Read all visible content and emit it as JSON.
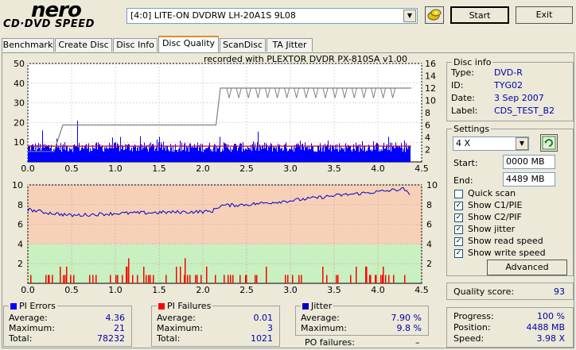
{
  "app": {
    "logo_top": "nero",
    "logo_bottom": "CD·DVD SPEED",
    "drive": "[4:0]  LITE-ON DVDRW LH-20A1S 9L08",
    "start_label": "Start",
    "exit_label": "Exit"
  },
  "tabs": [
    "Benchmark",
    "Create Disc",
    "Disc Info",
    "Disc Quality",
    "ScanDisc",
    "TA Jitter"
  ],
  "recorded_with": "recorded with PLEXTOR DVDR   PX-810SA  v1.00",
  "disc_info": {
    "title": "Disc info",
    "rows": [
      {
        "label": "Type:",
        "value": "DVD-R"
      },
      {
        "label": "ID:",
        "value": "TYG02"
      },
      {
        "label": "Date:",
        "value": "3 Sep 2007"
      },
      {
        "label": "Label:",
        "value": "CDS_TEST_B2"
      }
    ]
  },
  "settings": {
    "title": "Settings",
    "speed": "4 X",
    "start_label": "Start:",
    "start_value": "0000 MB",
    "end_label": "End:",
    "end_value": "4489 MB",
    "checks": [
      {
        "label": "Quick scan",
        "checked": false
      },
      {
        "label": "Show C1/PIE",
        "checked": true
      },
      {
        "label": "Show C2/PIF",
        "checked": true
      },
      {
        "label": "Show jitter",
        "checked": true
      },
      {
        "label": "Show read speed",
        "checked": true
      },
      {
        "label": "Show write speed",
        "checked": true
      }
    ],
    "advanced_label": "Advanced"
  },
  "quality": {
    "label": "Quality score:",
    "value": "93"
  },
  "progress": {
    "rows": [
      {
        "label": "Progress:",
        "value": "100 %"
      },
      {
        "label": "Position:",
        "value": "4488 MB"
      },
      {
        "label": "Speed:",
        "value": "3.98 X"
      }
    ]
  },
  "pi_errors": {
    "title": "PI Errors",
    "rows": [
      {
        "label": "Average:",
        "value": "4.36"
      },
      {
        "label": "Maximum:",
        "value": "21"
      },
      {
        "label": "Total:",
        "value": "78232"
      }
    ]
  },
  "pi_failures": {
    "title": "PI Failures",
    "rows": [
      {
        "label": "Average:",
        "value": "0.01"
      },
      {
        "label": "Maximum:",
        "value": "3"
      },
      {
        "label": "Total:",
        "value": "1021"
      }
    ]
  },
  "jitter": {
    "title": "Jitter",
    "rows": [
      {
        "label": "Average:",
        "value": "7.90 %"
      },
      {
        "label": "Maximum:",
        "value": "9.8 %"
      }
    ]
  },
  "po_failures": {
    "label": "PO failures:",
    "value": "–"
  },
  "colors": {
    "pie": "#0000ff",
    "pif": "#ff0000",
    "jitter": "#0000c0",
    "speed": "#808080",
    "threshold": "#d00000"
  },
  "chart_data": [
    {
      "type": "bar",
      "x_ticks": [
        "0.0",
        "0.5",
        "1.0",
        "1.5",
        "2.0",
        "2.5",
        "3.0",
        "3.5",
        "4.0",
        "4.5"
      ],
      "y_ticks_left": [
        "10",
        "20",
        "30",
        "40",
        "50"
      ],
      "y_ticks_right": [
        "2",
        "4",
        "6",
        "8",
        "10",
        "12",
        "14",
        "16"
      ],
      "xlim": [
        0,
        4.5
      ],
      "ylim_left": [
        0,
        50
      ],
      "ylim_right": [
        0,
        16
      ],
      "pie_max": 21,
      "pie_avg": 4.36,
      "threshold": 8,
      "read_speed": [
        [
          0.0,
          1.7
        ],
        [
          0.3,
          1.7
        ],
        [
          0.4,
          6.0
        ],
        [
          2.15,
          6.0
        ],
        [
          2.2,
          12.0
        ],
        [
          4.38,
          12.0
        ]
      ]
    },
    {
      "type": "bar",
      "x_ticks": [
        "0.0",
        "0.5",
        "1.0",
        "1.5",
        "2.0",
        "2.5",
        "3.0",
        "3.5",
        "4.0",
        "4.5"
      ],
      "y_ticks_left": [
        "2",
        "4",
        "6",
        "8",
        "10"
      ],
      "y_ticks_right": [
        "2",
        "4",
        "6",
        "8",
        "10"
      ],
      "xlim": [
        0,
        4.5
      ],
      "ylim_left": [
        0,
        10
      ],
      "ylim_right": [
        0,
        10
      ],
      "pif_max": 3,
      "jitter": [
        [
          0.0,
          7.5
        ],
        [
          0.2,
          7.2
        ],
        [
          0.5,
          6.9
        ],
        [
          1.0,
          7.1
        ],
        [
          1.5,
          7.2
        ],
        [
          2.1,
          7.3
        ],
        [
          2.2,
          7.9
        ],
        [
          2.5,
          8.0
        ],
        [
          3.0,
          8.4
        ],
        [
          3.5,
          8.9
        ],
        [
          4.0,
          9.3
        ],
        [
          4.3,
          9.6
        ],
        [
          4.38,
          8.7
        ]
      ]
    }
  ]
}
